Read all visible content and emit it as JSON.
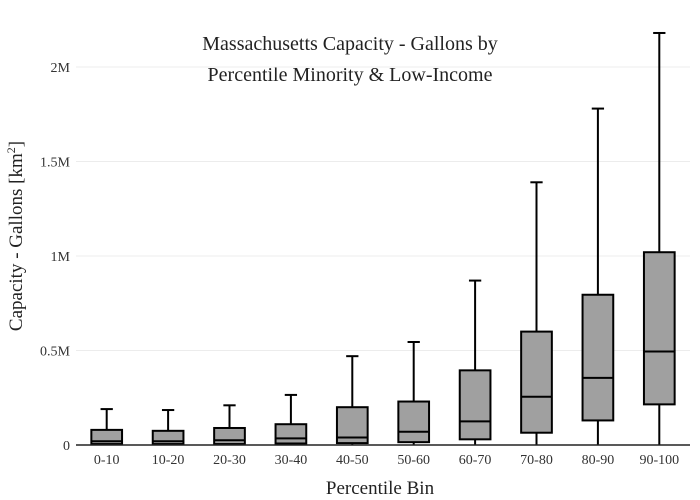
{
  "chart_data": {
    "type": "box",
    "title_lines": [
      "Massachusetts Capacity - Gallons by",
      "Percentile Minority & Low-Income"
    ],
    "xlabel": "Percentile Bin",
    "ylabel_main": "Capacity - Gallons  [km",
    "ylabel_sup": "2",
    "ylabel_end": "]",
    "categories": [
      "0-10",
      "10-20",
      "20-30",
      "30-40",
      "40-50",
      "50-60",
      "60-70",
      "70-80",
      "80-90",
      "90-100"
    ],
    "ylim": [
      0,
      2000000
    ],
    "ytick_values": [
      0,
      500000,
      1000000,
      1500000,
      2000000
    ],
    "ytick_labels": [
      "0",
      "0.5M",
      "1M",
      "1.5M",
      "2M"
    ],
    "box_color": "#a0a0a0",
    "grid": true,
    "stats": [
      {
        "min": 0,
        "q1": 5000,
        "median": 20000,
        "q3": 80000,
        "max": 190000
      },
      {
        "min": 0,
        "q1": 5000,
        "median": 20000,
        "q3": 75000,
        "max": 185000
      },
      {
        "min": 0,
        "q1": 5000,
        "median": 25000,
        "q3": 90000,
        "max": 210000
      },
      {
        "min": 0,
        "q1": 8000,
        "median": 35000,
        "q3": 110000,
        "max": 265000
      },
      {
        "min": 0,
        "q1": 10000,
        "median": 40000,
        "q3": 200000,
        "max": 470000
      },
      {
        "min": 0,
        "q1": 15000,
        "median": 70000,
        "q3": 230000,
        "max": 545000
      },
      {
        "min": 0,
        "q1": 30000,
        "median": 125000,
        "q3": 395000,
        "max": 870000
      },
      {
        "min": 0,
        "q1": 65000,
        "median": 255000,
        "q3": 600000,
        "max": 1390000
      },
      {
        "min": 0,
        "q1": 130000,
        "median": 355000,
        "q3": 795000,
        "max": 1780000
      },
      {
        "min": 0,
        "q1": 215000,
        "median": 495000,
        "q3": 1020000,
        "max": 2180000
      }
    ]
  }
}
